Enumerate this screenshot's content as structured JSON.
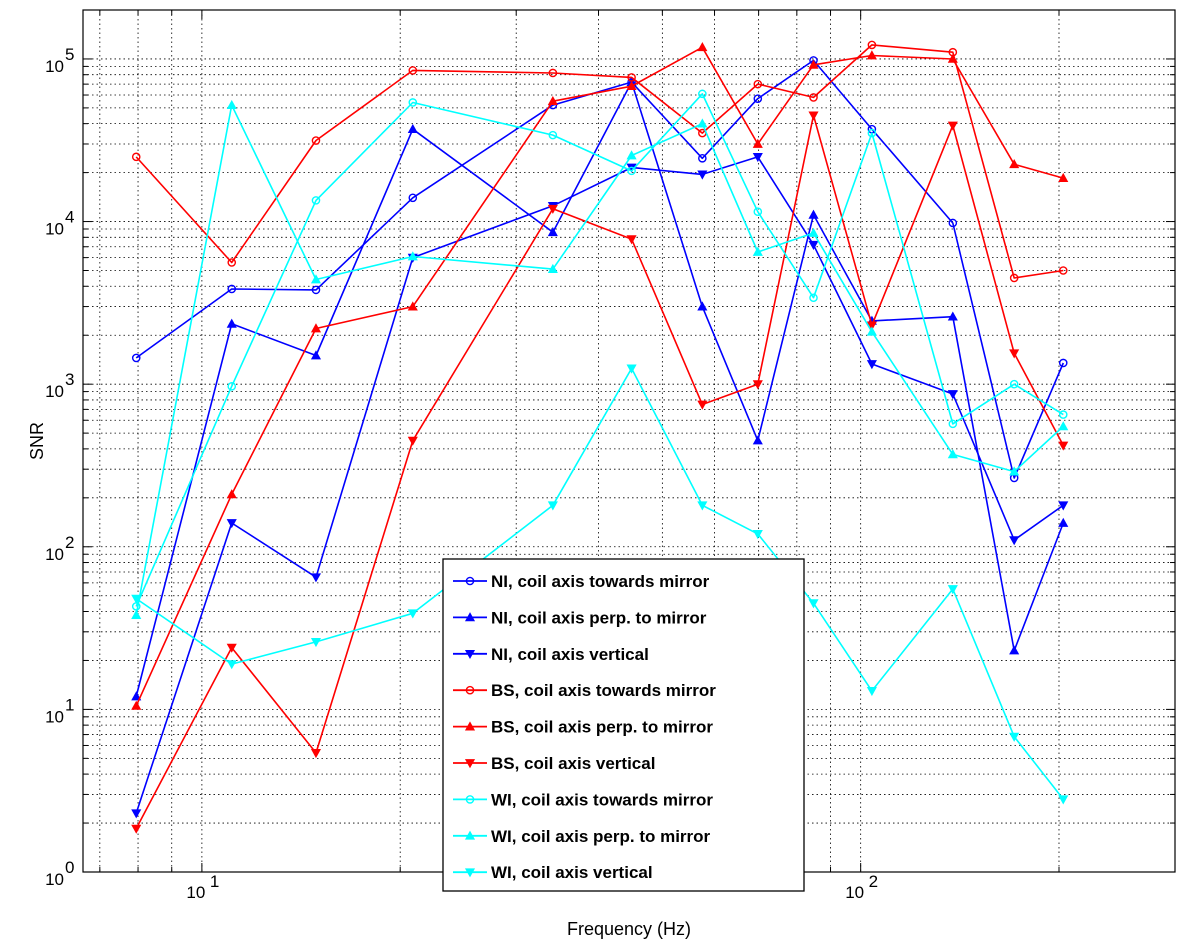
{
  "chart_data": {
    "type": "line",
    "title": "",
    "xlabel": "Frequency (Hz)",
    "ylabel": "SNR",
    "xscale": "log",
    "yscale": "log",
    "xlim": [
      6.6,
      300
    ],
    "ylim": [
      1,
      200000
    ],
    "grid": true,
    "legend_position": "bottom-center",
    "x_ticks": [
      {
        "value": 10,
        "base": "10",
        "exp": "1"
      },
      {
        "value": 100,
        "base": "10",
        "exp": "2"
      }
    ],
    "y_ticks": [
      {
        "value": 1,
        "base": "10",
        "exp": "0"
      },
      {
        "value": 10,
        "base": "10",
        "exp": "1"
      },
      {
        "value": 100,
        "base": "10",
        "exp": "2"
      },
      {
        "value": 1000,
        "base": "10",
        "exp": "3"
      },
      {
        "value": 10000,
        "base": "10",
        "exp": "4"
      },
      {
        "value": 100000,
        "base": "10",
        "exp": "5"
      }
    ],
    "x": [
      7.95,
      11.1,
      14.9,
      20.9,
      34.1,
      44.9,
      57.5,
      69.8,
      84.8,
      104,
      138,
      171,
      203
    ],
    "series": [
      {
        "name": "NI, coil axis towards mirror",
        "color": "#0000ff",
        "marker": "circle",
        "values": [
          1450,
          3850,
          3800,
          14000,
          52000,
          72000,
          24500,
          57000,
          98000,
          37000,
          9800,
          265,
          1350
        ]
      },
      {
        "name": "NI, coil axis perp. to mirror",
        "color": "#0000ff",
        "marker": "triangle-up",
        "values": [
          12,
          2350,
          1500,
          37000,
          8600,
          72000,
          3000,
          450,
          11000,
          2450,
          2600,
          23,
          140
        ]
      },
      {
        "name": "NI, coil axis vertical",
        "color": "#0000ff",
        "marker": "triangle-down",
        "values": [
          2.3,
          140,
          65,
          6000,
          12500,
          21500,
          19500,
          25000,
          7200,
          1330,
          870,
          110,
          180
        ]
      },
      {
        "name": "BS, coil axis towards mirror",
        "color": "#ff0000",
        "marker": "circle",
        "values": [
          25000,
          5600,
          31500,
          85000,
          82000,
          77000,
          35000,
          70000,
          58000,
          122000,
          110000,
          4500,
          5000
        ]
      },
      {
        "name": "BS, coil axis perp. to mirror",
        "color": "#ff0000",
        "marker": "triangle-up",
        "values": [
          10.5,
          210,
          2200,
          3000,
          55000,
          68000,
          118000,
          30000,
          92000,
          105000,
          100000,
          22500,
          18500
        ]
      },
      {
        "name": "BS, coil axis vertical",
        "color": "#ff0000",
        "marker": "triangle-down",
        "values": [
          1.85,
          24,
          5.4,
          450,
          12000,
          7800,
          750,
          1000,
          45000,
          2300,
          39000,
          1550,
          420
        ]
      },
      {
        "name": "WI, coil axis towards mirror",
        "color": "#00ffff",
        "marker": "circle",
        "values": [
          43,
          970,
          13500,
          54000,
          34000,
          20500,
          61000,
          11500,
          3400,
          35000,
          570,
          1000,
          650
        ]
      },
      {
        "name": "WI, coil axis perp. to mirror",
        "color": "#00ffff",
        "marker": "triangle-up",
        "values": [
          38,
          52000,
          4400,
          6100,
          5100,
          25500,
          40000,
          6500,
          8500,
          2100,
          370,
          290,
          550
        ]
      },
      {
        "name": "WI, coil axis vertical",
        "color": "#00ffff",
        "marker": "triangle-down",
        "values": [
          48,
          19,
          26,
          39,
          180,
          1250,
          180,
          120,
          45,
          13,
          55,
          6.8,
          2.8
        ]
      }
    ]
  }
}
